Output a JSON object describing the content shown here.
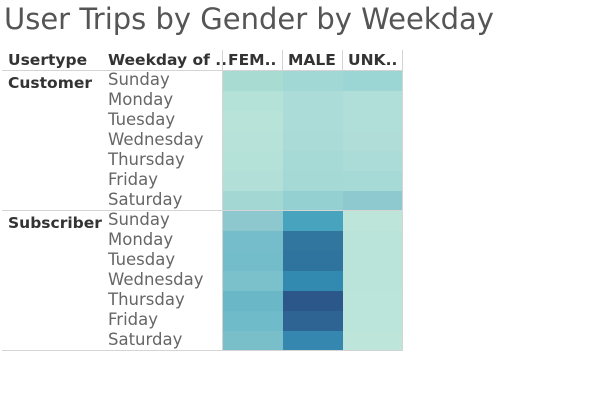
{
  "title": "User Trips by Gender by Weekday",
  "headers": {
    "usertype": "Usertype",
    "weekday": "Weekday of ..",
    "columns": [
      "FEM..",
      "MALE",
      "UNK.."
    ]
  },
  "chart_data": {
    "type": "heatmap",
    "title": "User Trips by Gender by Weekday",
    "row_dimensions": [
      "Usertype",
      "Weekday of .."
    ],
    "columns": [
      "FEM..",
      "MALE",
      "UNK.."
    ],
    "groups": [
      {
        "name": "Customer",
        "rows": [
          {
            "label": "Sunday",
            "colors": [
              "#a8dcd3",
              "#a1d7d4",
              "#9cd6d4"
            ]
          },
          {
            "label": "Monday",
            "colors": [
              "#b5e2d8",
              "#acdcd7",
              "#b0ded8"
            ]
          },
          {
            "label": "Tuesday",
            "colors": [
              "#b8e3d9",
              "#abdcd7",
              "#b0ded8"
            ]
          },
          {
            "label": "Wednesday",
            "colors": [
              "#b7e2d9",
              "#abdbd7",
              "#b1ddd8"
            ]
          },
          {
            "label": "Thursday",
            "colors": [
              "#b4e1d8",
              "#a6dad6",
              "#acdcd7"
            ]
          },
          {
            "label": "Friday",
            "colors": [
              "#b2e0d8",
              "#a4d9d6",
              "#a6dad6"
            ]
          },
          {
            "label": "Saturday",
            "colors": [
              "#a2d7d4",
              "#94cfd1",
              "#8dc9cf"
            ]
          }
        ]
      },
      {
        "name": "Subscriber",
        "rows": [
          {
            "label": "Sunday",
            "colors": [
              "#8ec8cf",
              "#48a3be",
              "#bde5da"
            ]
          },
          {
            "label": "Monday",
            "colors": [
              "#75bdca",
              "#30769f",
              "#bae4d9"
            ]
          },
          {
            "label": "Tuesday",
            "colors": [
              "#73bcc9",
              "#2f749e",
              "#bae4d9"
            ]
          },
          {
            "label": "Wednesday",
            "colors": [
              "#7bc1cb",
              "#338ab1",
              "#bae4d9"
            ]
          },
          {
            "label": "Thursday",
            "colors": [
              "#6ab7c7",
              "#2c578a",
              "#bbe4da"
            ]
          },
          {
            "label": "Friday",
            "colors": [
              "#70bbc9",
              "#2d6494",
              "#bbe4da"
            ]
          },
          {
            "label": "Saturday",
            "colors": [
              "#78bfca",
              "#3587b0",
              "#bde5da"
            ]
          }
        ]
      }
    ]
  }
}
